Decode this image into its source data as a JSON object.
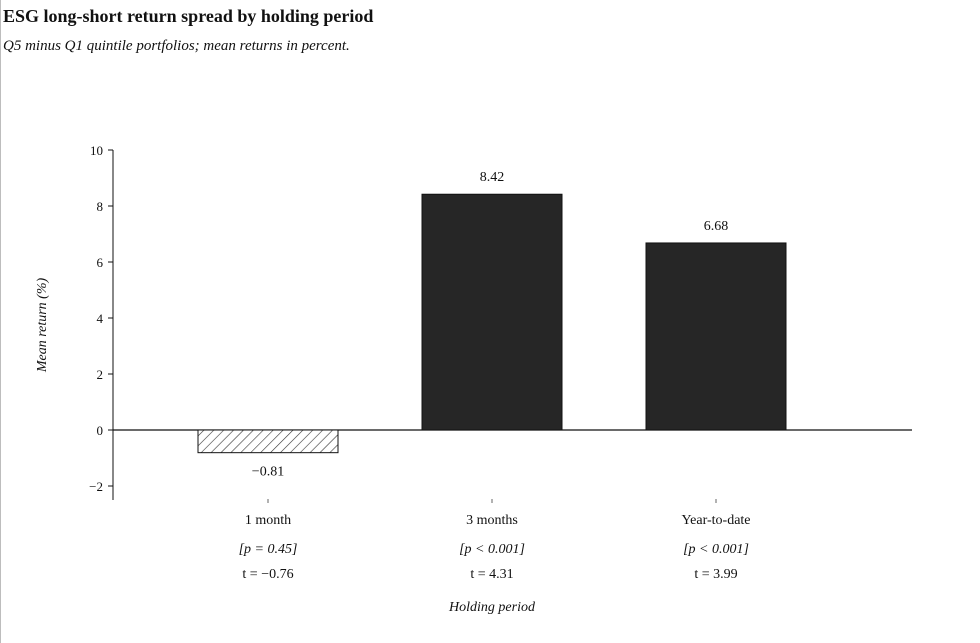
{
  "chart_data": {
    "type": "bar",
    "title": "ESG long-short return spread by holding period",
    "subtitle": "Q5 minus Q1 quintile portfolios; mean returns in percent.",
    "xlabel": "Holding period",
    "ylabel": "Mean return (%)",
    "ylim": [
      -2.5,
      10
    ],
    "yticks": [
      10,
      8,
      6,
      4,
      2,
      0,
      -2
    ],
    "ytick_labels": [
      "10",
      "8",
      "6",
      "4",
      "2",
      "0",
      "−2"
    ],
    "categories": [
      "1 month",
      "3 months",
      "Year-to-date"
    ],
    "values": [
      -0.81,
      8.42,
      6.68
    ],
    "value_labels": [
      "−0.81",
      "8.42",
      "6.68"
    ],
    "p_labels": [
      "[p = 0.45]",
      "[p < 0.001]",
      "[p < 0.001]"
    ],
    "t_labels": [
      "t = −0.76",
      "t = 4.31",
      "t = 3.99"
    ],
    "bar_styles": [
      "hatched",
      "solid",
      "solid"
    ],
    "grid": false,
    "colors": {
      "bar_fill": "#262626",
      "hatch": "#333333",
      "axis": "#111111"
    }
  }
}
